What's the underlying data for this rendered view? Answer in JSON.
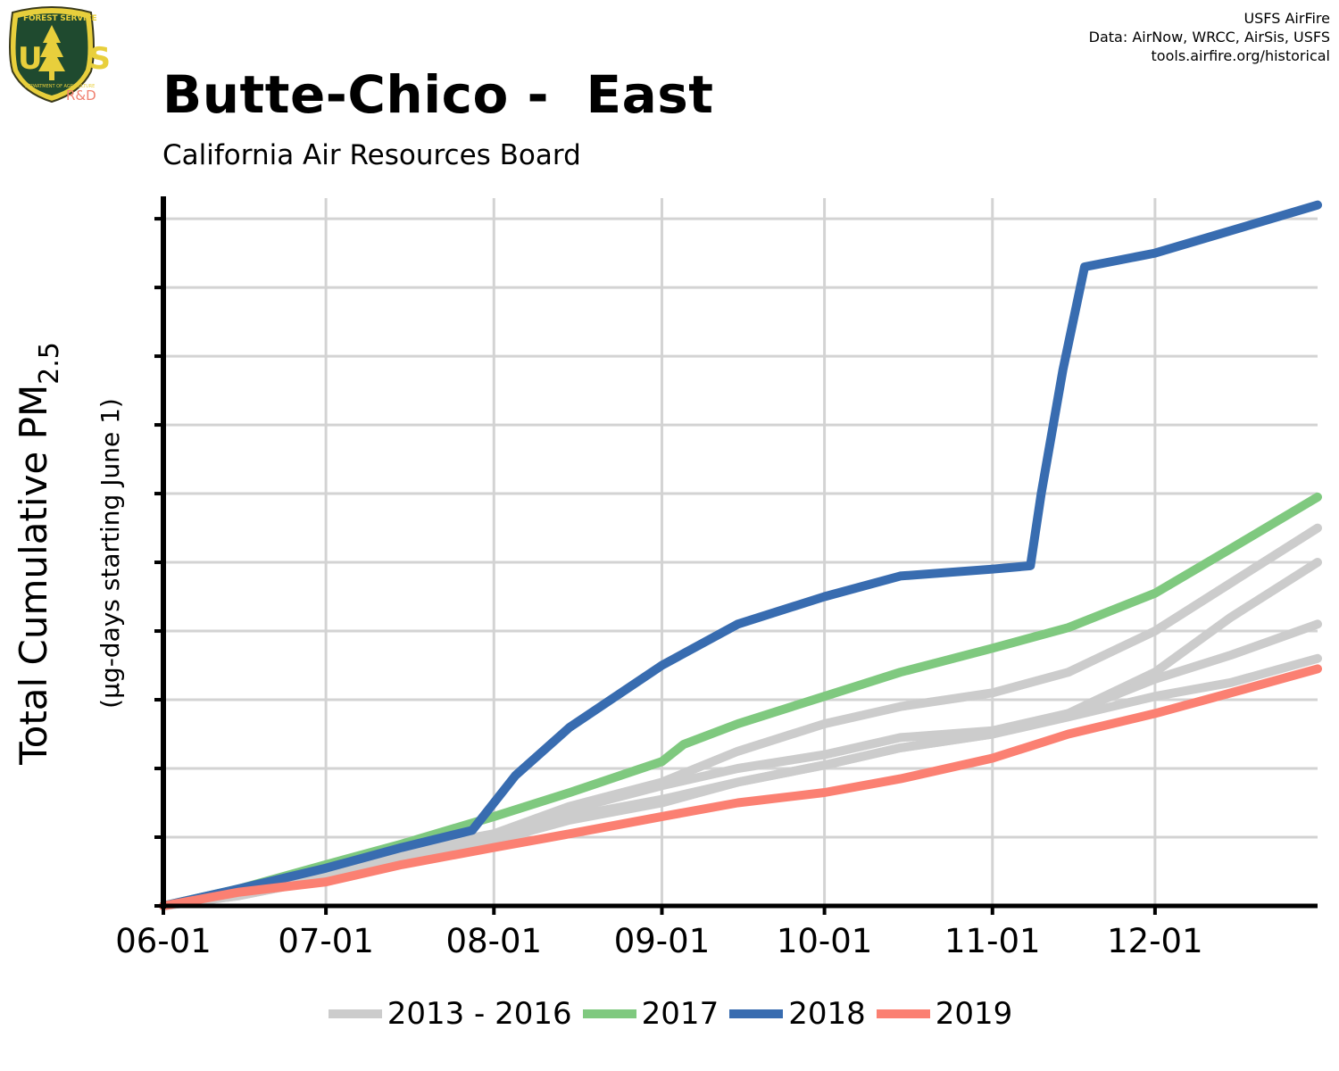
{
  "header": {
    "title": "Butte-Chico -  East",
    "subtitle": "California Air Resources Board",
    "logo": {
      "top_text": "FOREST SERVICE",
      "letters": "U S",
      "bottom_text": "DEPARTMENT OF AGRICULTURE",
      "suffix": "R&D"
    },
    "credits": [
      "USFS AirFire",
      "Data: AirNow, WRCC, AirSis, USFS",
      "tools.airfire.org/historical"
    ]
  },
  "colors": {
    "grey": "#cccccc",
    "green": "#7fc97f",
    "blue": "#386cb0",
    "salmon": "#fb8072",
    "grid": "#d3d3d3"
  },
  "chart_data": {
    "type": "line",
    "title": "Butte-Chico -  East",
    "subtitle": "California Air Resources Board",
    "ylabel": "Total Cumulative PM2.5",
    "ylabel_main": "Total Cumulative PM",
    "ylabel_subscript": "2.5",
    "ylabel_units": "(µg-days starting June 1)",
    "x_type": "date",
    "x_tick_labels": [
      "06-01",
      "07-01",
      "08-01",
      "09-01",
      "10-01",
      "11-01",
      "12-01"
    ],
    "x_tick_dates": [
      "06-01",
      "07-01",
      "08-01",
      "09-01",
      "10-01",
      "11-01",
      "12-01"
    ],
    "xlim": [
      "06-01",
      "12-31"
    ],
    "ylim": [
      0,
      10.3
    ],
    "y_ticks": [
      0,
      1,
      2,
      3,
      4,
      5,
      6,
      7,
      8,
      9,
      10
    ],
    "y_tick_labels_shown": false,
    "grid": true,
    "legend_position": "bottom",
    "legend": [
      "2013 - 2016",
      "2017",
      "2018",
      "2019"
    ],
    "series": [
      {
        "name": "2013 - 2016",
        "color": "#cccccc",
        "points": [
          [
            "06-01",
            0
          ],
          [
            "06-15",
            0.2
          ],
          [
            "07-01",
            0.5
          ],
          [
            "07-15",
            0.8
          ],
          [
            "08-01",
            1.05
          ],
          [
            "08-15",
            1.45
          ],
          [
            "09-01",
            1.8
          ],
          [
            "09-15",
            2.25
          ],
          [
            "10-01",
            2.65
          ],
          [
            "10-15",
            2.9
          ],
          [
            "11-01",
            3.1
          ],
          [
            "11-15",
            3.4
          ],
          [
            "12-01",
            4.0
          ],
          [
            "12-15",
            4.7
          ],
          [
            "12-31",
            5.5
          ]
        ]
      },
      {
        "name": "2013 - 2016",
        "color": "#cccccc",
        "points": [
          [
            "06-01",
            0
          ],
          [
            "06-15",
            0.2
          ],
          [
            "07-01",
            0.45
          ],
          [
            "07-15",
            0.7
          ],
          [
            "08-01",
            1.0
          ],
          [
            "08-15",
            1.3
          ],
          [
            "09-01",
            1.55
          ],
          [
            "09-15",
            1.8
          ],
          [
            "10-01",
            2.05
          ],
          [
            "10-15",
            2.3
          ],
          [
            "11-01",
            2.5
          ],
          [
            "11-15",
            2.8
          ],
          [
            "12-01",
            3.4
          ],
          [
            "12-15",
            4.2
          ],
          [
            "12-31",
            5.0
          ]
        ]
      },
      {
        "name": "2013 - 2016",
        "color": "#cccccc",
        "points": [
          [
            "06-01",
            0
          ],
          [
            "06-15",
            0.15
          ],
          [
            "07-01",
            0.4
          ],
          [
            "07-15",
            0.65
          ],
          [
            "08-01",
            0.95
          ],
          [
            "08-15",
            1.4
          ],
          [
            "09-01",
            1.75
          ],
          [
            "09-15",
            2.0
          ],
          [
            "10-01",
            2.2
          ],
          [
            "10-15",
            2.45
          ],
          [
            "11-01",
            2.55
          ],
          [
            "11-15",
            2.8
          ],
          [
            "12-01",
            3.3
          ],
          [
            "12-15",
            3.65
          ],
          [
            "12-31",
            4.1
          ]
        ]
      },
      {
        "name": "2013 - 2016",
        "color": "#cccccc",
        "points": [
          [
            "06-01",
            0
          ],
          [
            "06-15",
            0.15
          ],
          [
            "07-01",
            0.4
          ],
          [
            "07-15",
            0.65
          ],
          [
            "08-01",
            0.95
          ],
          [
            "08-15",
            1.25
          ],
          [
            "09-01",
            1.5
          ],
          [
            "09-15",
            1.8
          ],
          [
            "10-01",
            2.05
          ],
          [
            "10-15",
            2.3
          ],
          [
            "11-01",
            2.5
          ],
          [
            "11-15",
            2.75
          ],
          [
            "12-01",
            3.05
          ],
          [
            "12-15",
            3.25
          ],
          [
            "12-31",
            3.6
          ]
        ]
      },
      {
        "name": "2017",
        "color": "#7fc97f",
        "points": [
          [
            "06-01",
            0
          ],
          [
            "06-15",
            0.25
          ],
          [
            "07-01",
            0.6
          ],
          [
            "07-15",
            0.9
          ],
          [
            "08-01",
            1.3
          ],
          [
            "08-15",
            1.65
          ],
          [
            "09-01",
            2.1
          ],
          [
            "09-05",
            2.35
          ],
          [
            "09-15",
            2.65
          ],
          [
            "10-01",
            3.05
          ],
          [
            "10-15",
            3.4
          ],
          [
            "11-01",
            3.75
          ],
          [
            "11-15",
            4.05
          ],
          [
            "12-01",
            4.55
          ],
          [
            "12-15",
            5.2
          ],
          [
            "12-31",
            5.95
          ]
        ]
      },
      {
        "name": "2018",
        "color": "#386cb0",
        "points": [
          [
            "06-01",
            0
          ],
          [
            "06-15",
            0.25
          ],
          [
            "07-01",
            0.55
          ],
          [
            "07-15",
            0.85
          ],
          [
            "07-28",
            1.1
          ],
          [
            "08-05",
            1.9
          ],
          [
            "08-15",
            2.6
          ],
          [
            "09-01",
            3.5
          ],
          [
            "09-15",
            4.1
          ],
          [
            "10-01",
            4.5
          ],
          [
            "10-15",
            4.8
          ],
          [
            "11-01",
            4.9
          ],
          [
            "11-08",
            4.95
          ],
          [
            "11-10",
            6.0
          ],
          [
            "11-14",
            7.8
          ],
          [
            "11-18",
            9.3
          ],
          [
            "12-01",
            9.5
          ],
          [
            "12-31",
            10.2
          ]
        ]
      },
      {
        "name": "2019",
        "color": "#fb8072",
        "points": [
          [
            "06-01",
            0
          ],
          [
            "06-15",
            0.2
          ],
          [
            "07-01",
            0.35
          ],
          [
            "07-15",
            0.6
          ],
          [
            "08-01",
            0.85
          ],
          [
            "08-15",
            1.05
          ],
          [
            "09-01",
            1.3
          ],
          [
            "09-15",
            1.5
          ],
          [
            "10-01",
            1.65
          ],
          [
            "10-15",
            1.85
          ],
          [
            "11-01",
            2.15
          ],
          [
            "11-15",
            2.5
          ],
          [
            "12-01",
            2.8
          ],
          [
            "12-15",
            3.1
          ],
          [
            "12-31",
            3.45
          ]
        ]
      }
    ]
  }
}
